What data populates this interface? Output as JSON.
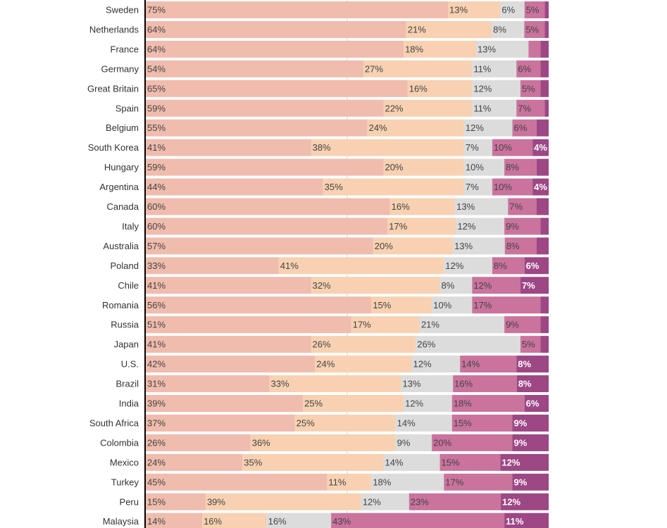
{
  "colors": {
    "segment_1": "#efbcad",
    "segment_2": "#f7d1b1",
    "segment_3": "#dcdcdc",
    "segment_4": "#c9739d",
    "segment_5": "#9d4785",
    "axis": "#000000",
    "label_text": "#333333"
  },
  "chart_data": {
    "type": "bar",
    "orientation": "horizontal",
    "stacked": true,
    "normalized": true,
    "xlim": [
      0,
      100
    ],
    "title": "",
    "xlabel": "",
    "ylabel": "",
    "categories": [
      "Sweden",
      "Netherlands",
      "France",
      "Germany",
      "Great Britain",
      "Spain",
      "Belgium",
      "South Korea",
      "Hungary",
      "Argentina",
      "Canada",
      "Italy",
      "Australia",
      "Poland",
      "Chile",
      "Romania",
      "Russia",
      "Japan",
      "U.S.",
      "Brazil",
      "India",
      "South Africa",
      "Colombia",
      "Mexico",
      "Turkey",
      "Peru",
      "Malaysia"
    ],
    "series": [
      {
        "values": [
          75,
          64,
          64,
          54,
          65,
          59,
          55,
          41,
          59,
          44,
          60,
          60,
          57,
          33,
          41,
          56,
          51,
          41,
          42,
          31,
          39,
          37,
          26,
          24,
          45,
          15,
          14
        ],
        "labels": [
          "75%",
          "64%",
          "64%",
          "54%",
          "65%",
          "59%",
          "55%",
          "41%",
          "59%",
          "44%",
          "60%",
          "60%",
          "57%",
          "33%",
          "41%",
          "56%",
          "51%",
          "41%",
          "42%",
          "31%",
          "39%",
          "37%",
          "26%",
          "24%",
          "45%",
          "15%",
          "14%"
        ]
      },
      {
        "values": [
          13,
          21,
          18,
          27,
          16,
          22,
          24,
          38,
          20,
          35,
          16,
          17,
          20,
          41,
          32,
          15,
          17,
          26,
          24,
          33,
          25,
          25,
          36,
          35,
          11,
          39,
          16
        ],
        "labels": [
          "13%",
          "21%",
          "18%",
          "27%",
          "16%",
          "22%",
          "24%",
          "38%",
          "20%",
          "35%",
          "16%",
          "17%",
          "20%",
          "41%",
          "32%",
          "15%",
          "17%",
          "26%",
          "24%",
          "33%",
          "25%",
          "25%",
          "36%",
          "35%",
          "11%",
          "39%",
          "16%"
        ]
      },
      {
        "values": [
          6,
          8,
          13,
          11,
          12,
          11,
          12,
          7,
          10,
          7,
          13,
          12,
          13,
          12,
          8,
          10,
          21,
          26,
          12,
          13,
          12,
          14,
          9,
          14,
          18,
          12,
          16
        ],
        "labels": [
          "6%",
          "8%",
          "13%",
          "11%",
          "12%",
          "11%",
          "12%",
          "7%",
          "10%",
          "7%",
          "13%",
          "12%",
          "13%",
          "12%",
          "8%",
          "10%",
          "21%",
          "26%",
          "12%",
          "13%",
          "12%",
          "14%",
          "9%",
          "14%",
          "18%",
          "12%",
          "16%"
        ]
      },
      {
        "values": [
          5,
          5,
          3,
          6,
          5,
          7,
          6,
          10,
          8,
          10,
          7,
          9,
          8,
          8,
          12,
          17,
          9,
          5,
          14,
          16,
          18,
          15,
          20,
          15,
          17,
          23,
          43
        ],
        "labels": [
          "5%",
          "5%",
          "",
          "6%",
          "5%",
          "7%",
          "6%",
          "10%",
          "8%",
          "10%",
          "7%",
          "9%",
          "8%",
          "8%",
          "12%",
          "17%",
          "9%",
          "5%",
          "14%",
          "16%",
          "18%",
          "15%",
          "20%",
          "15%",
          "17%",
          "23%",
          "43%"
        ]
      },
      {
        "values": [
          1,
          1,
          2,
          2,
          2,
          1,
          3,
          4,
          3,
          4,
          3,
          2,
          3,
          6,
          7,
          2,
          2,
          2,
          8,
          8,
          6,
          9,
          9,
          12,
          9,
          12,
          11
        ],
        "labels": [
          "",
          "",
          "",
          "",
          "",
          "",
          "",
          "4%",
          "",
          "4%",
          "",
          "",
          "",
          "6%",
          "7%",
          "",
          "",
          "",
          "8%",
          "8%",
          "6%",
          "9%",
          "9%",
          "12%",
          "9%",
          "12%",
          "11%"
        ]
      }
    ]
  }
}
